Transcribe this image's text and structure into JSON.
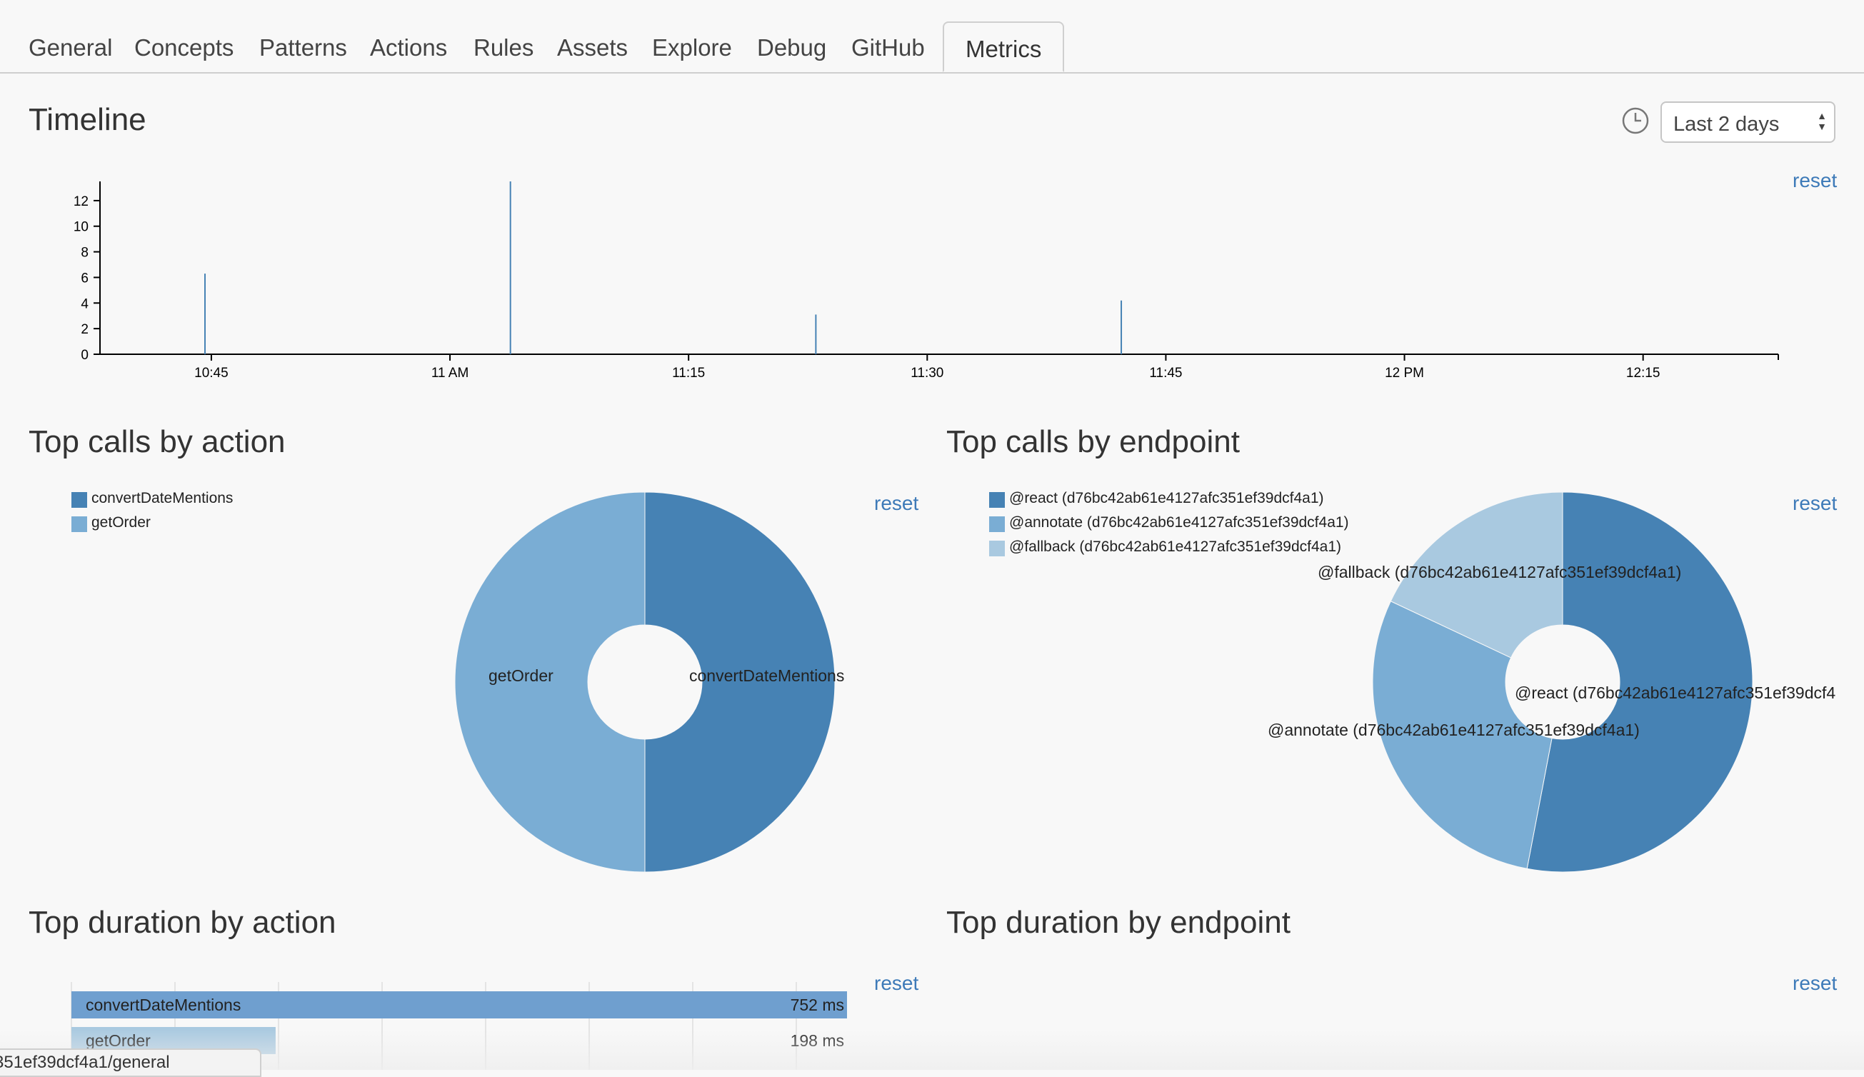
{
  "tabs": [
    "General",
    "Concepts",
    "Patterns",
    "Actions",
    "Rules",
    "Assets",
    "Explore",
    "Debug",
    "GitHub",
    "Metrics"
  ],
  "active_tab": "Metrics",
  "timeline": {
    "title": "Timeline",
    "range_select": "Last 2 days",
    "reset": "reset"
  },
  "calls_action": {
    "title": "Top calls by action",
    "reset": "reset",
    "legend": [
      "convertDateMentions",
      "getOrder"
    ]
  },
  "calls_endpoint": {
    "title": "Top calls by endpoint",
    "reset": "reset",
    "legend": [
      "@react (d76bc42ab61e4127afc351ef39dcf4a1)",
      "@annotate (d76bc42ab61e4127afc351ef39dcf4a1)",
      "@fallback (d76bc42ab61e4127afc351ef39dcf4a1)"
    ]
  },
  "duration_action": {
    "title": "Top duration by action",
    "reset": "reset"
  },
  "duration_endpoint": {
    "title": "Top duration by endpoint",
    "reset": "reset"
  },
  "status_url": "351ef39dcf4a1/general",
  "colors": {
    "dark": "#4682b4",
    "mid": "#7aadd4",
    "light": "#a9c9e0",
    "link": "#3d7ab8"
  },
  "icons": {
    "clock": "clock-icon",
    "select_arrows": "select-arrows-icon"
  },
  "chart_data": [
    {
      "type": "bar",
      "title": "Timeline",
      "x_ticks": [
        "10:45",
        "11 AM",
        "11:15",
        "11:30",
        "11:45",
        "12 PM",
        "12:15"
      ],
      "y_ticks": [
        0,
        2,
        4,
        6,
        8,
        10,
        12
      ],
      "ylim": [
        0,
        13.5
      ],
      "xlim_minutes": [
        38,
        143.5
      ],
      "x_tick_minutes": [
        45,
        60,
        75,
        90,
        105,
        120,
        135
      ],
      "spikes": [
        {
          "time": "10:44",
          "minute": 44.6,
          "value": 6.3
        },
        {
          "time": "11:03",
          "minute": 63.8,
          "value": 13.5
        },
        {
          "time": "11:22",
          "minute": 83.0,
          "value": 3.1
        },
        {
          "time": "11:42",
          "minute": 102.2,
          "value": 4.2
        }
      ]
    },
    {
      "type": "pie",
      "title": "Top calls by action",
      "labels": [
        "convertDateMentions",
        "getOrder"
      ],
      "values": [
        50,
        50
      ],
      "colors": [
        "#4682b4",
        "#7aadd4"
      ]
    },
    {
      "type": "pie",
      "title": "Top calls by endpoint",
      "labels": [
        "@react (d76bc42ab61e4127afc351ef39dcf4a1)",
        "@annotate (d76bc42ab61e4127afc351ef39dcf4a1)",
        "@fallback (d76bc42ab61e4127afc351ef39dcf4a1)"
      ],
      "slice_labels": [
        "@react (d76bc42ab61e4127afc351ef39dcf4",
        "@annotate (d76bc42ab61e4127afc351ef39dcf4a1)",
        "@fallback (d76bc42ab61e4127afc351ef39dcf4a1)"
      ],
      "values": [
        53,
        29,
        18
      ],
      "colors": [
        "#4682b4",
        "#7aadd4",
        "#a9c9e0"
      ]
    },
    {
      "type": "bar",
      "title": "Top duration by action",
      "orientation": "horizontal",
      "categories": [
        "convertDateMentions",
        "getOrder"
      ],
      "values": [
        752,
        198
      ],
      "value_labels": [
        "752 ms",
        "198 ms"
      ],
      "xlim": [
        0,
        752
      ]
    }
  ]
}
